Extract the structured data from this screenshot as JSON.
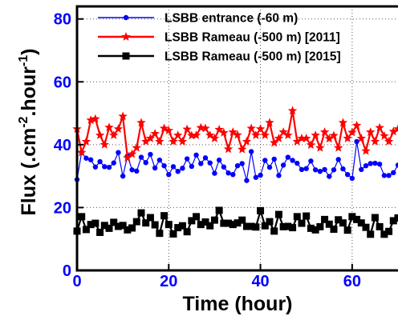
{
  "chart_data": {
    "type": "line",
    "title": "",
    "xlabel": "Time (hour)",
    "ylabel": "Flux (.cm^-2.hour^-1)",
    "xlim": [
      0,
      70
    ],
    "ylim": [
      0,
      84
    ],
    "xticks": [
      0,
      20,
      40,
      60
    ],
    "yticks": [
      0,
      20,
      40,
      60,
      80
    ],
    "grid": "dotted",
    "legend_position": "top",
    "tick_label_color": "#0000ff",
    "series": [
      {
        "name": "LSBB entrance (-60 m)",
        "color": "#0000ff",
        "marker": "circle",
        "x": [
          0,
          1,
          2,
          3,
          4,
          5,
          6,
          7,
          8,
          9,
          10,
          11,
          12,
          13,
          14,
          15,
          16,
          17,
          18,
          19,
          20,
          21,
          22,
          23,
          24,
          25,
          26,
          27,
          28,
          29,
          30,
          31,
          32,
          33,
          34,
          35,
          36,
          37,
          38,
          39,
          40,
          41,
          42,
          43,
          44,
          45,
          46,
          47,
          48,
          49,
          50,
          51,
          52,
          53,
          54,
          55,
          56,
          57,
          58,
          59,
          60,
          61,
          62,
          63,
          64,
          65,
          66,
          67,
          68,
          69,
          70
        ],
        "y": [
          28.9,
          37.6,
          35.7,
          35.2,
          32.9,
          34.6,
          33.0,
          32.8,
          34.2,
          37.5,
          30.0,
          36.4,
          32.0,
          31.6,
          36.0,
          34.3,
          36.9,
          32.6,
          35.1,
          33.3,
          30.5,
          33.0,
          31.5,
          32.5,
          35.5,
          33.1,
          36.7,
          34.0,
          35.8,
          34.2,
          30.9,
          35.1,
          32.9,
          31.0,
          30.5,
          33.3,
          34.0,
          28.6,
          37.8,
          29.6,
          30.3,
          35.0,
          32.8,
          35.4,
          30.2,
          33.5,
          36.0,
          35.0,
          34.1,
          32.1,
          32.4,
          34.8,
          32.0,
          31.5,
          32.1,
          29.9,
          32.0,
          35.3,
          32.3,
          30.5,
          29.3,
          41.0,
          32.1,
          33.3,
          34.0,
          34.1,
          33.8,
          30.2,
          30.2,
          31.1,
          33.5
        ]
      },
      {
        "name": "LSBB Rameau (-500 m) [2011]",
        "color": "#ff0000",
        "marker": "star",
        "x": [
          0,
          1,
          2,
          3,
          4,
          5,
          6,
          7,
          8,
          9,
          10,
          11,
          12,
          13,
          14,
          15,
          16,
          17,
          18,
          19,
          20,
          21,
          22,
          23,
          24,
          25,
          26,
          27,
          28,
          29,
          30,
          31,
          32,
          33,
          34,
          35,
          36,
          37,
          38,
          39,
          40,
          41,
          42,
          43,
          44,
          45,
          46,
          47,
          48,
          49,
          50,
          51,
          52,
          53,
          54,
          55,
          56,
          57,
          58,
          59,
          60,
          61,
          62,
          63,
          64,
          65,
          66,
          67,
          68,
          69,
          70
        ],
        "y": [
          45.0,
          37.5,
          41.0,
          47.8,
          48.2,
          43.0,
          40.0,
          45.5,
          43.0,
          45.0,
          49.0,
          35.8,
          37.0,
          39.0,
          47.0,
          41.0,
          42.0,
          43.5,
          41.0,
          45.2,
          44.5,
          41.0,
          43.0,
          41.0,
          44.9,
          42.9,
          43.0,
          45.4,
          45.2,
          43.0,
          42.0,
          44.8,
          43.8,
          38.6,
          44.0,
          43.1,
          38.5,
          41.0,
          45.2,
          43.0,
          45.0,
          43.0,
          47.0,
          40.6,
          42.0,
          44.0,
          43.0,
          50.8,
          41.0,
          42.0,
          42.0,
          39.9,
          43.0,
          39.0,
          44.0,
          41.9,
          42.9,
          39.0,
          47.0,
          42.0,
          43.9,
          46.1,
          42.0,
          38.0,
          44.0,
          41.0,
          45.4,
          42.8,
          41.0,
          44.2,
          45.0
        ]
      },
      {
        "name": "LSBB Rameau (-500 m) [2015]",
        "color": "#000000",
        "marker": "square",
        "x": [
          0,
          1,
          2,
          3,
          4,
          5,
          6,
          7,
          8,
          9,
          10,
          11,
          12,
          13,
          14,
          15,
          16,
          17,
          18,
          19,
          20,
          21,
          22,
          23,
          24,
          25,
          26,
          27,
          28,
          29,
          30,
          31,
          32,
          33,
          34,
          35,
          36,
          37,
          38,
          39,
          40,
          41,
          42,
          43,
          44,
          45,
          46,
          47,
          48,
          49,
          50,
          51,
          52,
          53,
          54,
          55,
          56,
          57,
          58,
          59,
          60,
          61,
          62,
          63,
          64,
          65,
          66,
          67,
          68,
          69,
          70
        ],
        "y": [
          12.5,
          17.1,
          13.0,
          14.6,
          15.0,
          12.1,
          14.3,
          13.4,
          15.3,
          14.0,
          14.3,
          12.9,
          13.5,
          15.5,
          18.3,
          15.1,
          16.8,
          14.5,
          11.8,
          17.4,
          14.6,
          11.6,
          13.6,
          14.2,
          12.3,
          15.8,
          17.1,
          14.6,
          15.4,
          14.2,
          16.0,
          19.1,
          15.0,
          15.0,
          14.6,
          15.1,
          16.0,
          14.0,
          14.0,
          13.8,
          19.0,
          14.2,
          15.5,
          12.5,
          17.8,
          13.9,
          14.0,
          13.6,
          17.1,
          15.0,
          17.3,
          13.4,
          12.9,
          13.9,
          16.2,
          14.7,
          13.1,
          16.1,
          15.1,
          12.8,
          17.1,
          16.2,
          15.1,
          13.7,
          11.5,
          16.8,
          13.9,
          11.5,
          12.4,
          15.8,
          16.7
        ]
      }
    ]
  }
}
